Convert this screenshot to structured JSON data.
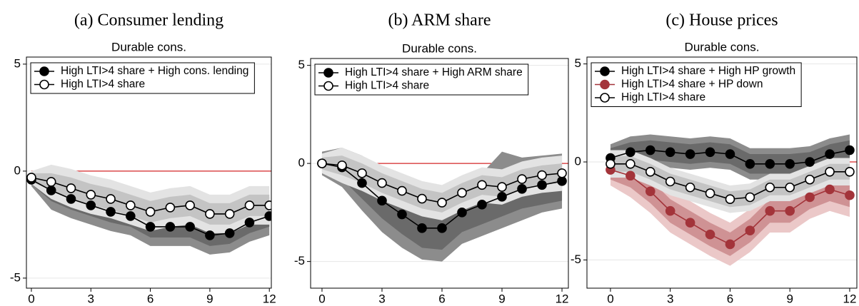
{
  "chart_data": [
    {
      "type": "line",
      "caption": "(a) Consumer lending",
      "title": "Durable cons.",
      "x": [
        0,
        1,
        2,
        3,
        4,
        5,
        6,
        7,
        8,
        9,
        10,
        11,
        12
      ],
      "xlim": [
        -0.25,
        12.1
      ],
      "xticks": [
        0,
        3,
        6,
        9,
        12
      ],
      "ylim": [
        -5.47,
        5.33
      ],
      "yticks": [
        -5,
        0,
        5
      ],
      "grid": true,
      "reference_line": {
        "value": 0,
        "color": "#d62728"
      },
      "legend": "top-left",
      "series": [
        {
          "name": "High LTI>4 share + High cons. lending",
          "color": "#000000",
          "marker": "filled",
          "band_colors": [
            "#8c8c8c",
            "#6a6a6a"
          ],
          "values": [
            -0.4,
            -0.9,
            -1.3,
            -1.6,
            -1.9,
            -2.1,
            -2.6,
            -2.6,
            -2.6,
            -3.0,
            -2.9,
            -2.4,
            -2.1
          ],
          "inner_lower": [
            -0.6,
            -1.4,
            -1.8,
            -2.1,
            -2.4,
            -2.6,
            -3.1,
            -3.1,
            -3.1,
            -3.5,
            -3.4,
            -2.9,
            -2.6
          ],
          "inner_upper": [
            -0.2,
            -0.4,
            -0.8,
            -1.1,
            -1.4,
            -1.6,
            -2.1,
            -2.1,
            -2.1,
            -2.5,
            -2.4,
            -1.9,
            -1.6
          ],
          "outer_lower": [
            -0.7,
            -1.8,
            -2.2,
            -2.5,
            -2.8,
            -3.0,
            -3.5,
            -3.5,
            -3.5,
            -3.9,
            -3.8,
            -3.3,
            -3.0
          ],
          "outer_upper": [
            -0.1,
            0,
            -0.4,
            -0.7,
            -1.0,
            -1.2,
            -1.7,
            -1.7,
            -1.7,
            -2.1,
            -2.0,
            -1.5,
            -1.2
          ]
        },
        {
          "name": "High LTI>4 share",
          "color": "#000000",
          "marker": "open",
          "band_colors": [
            "#e3e3e3",
            "#c4c4c4"
          ],
          "values": [
            -0.3,
            -0.5,
            -0.8,
            -1.1,
            -1.3,
            -1.6,
            -1.9,
            -1.7,
            -1.6,
            -2.0,
            -2.0,
            -1.6,
            -1.6
          ],
          "inner_lower": [
            -0.5,
            -0.9,
            -1.3,
            -1.6,
            -1.8,
            -2.1,
            -2.4,
            -2.2,
            -2.1,
            -2.5,
            -2.5,
            -2.1,
            -2.1
          ],
          "inner_upper": [
            -0.1,
            -0.1,
            -0.3,
            -0.6,
            -0.8,
            -1.1,
            -1.4,
            -1.2,
            -1.1,
            -1.5,
            -1.5,
            -1.1,
            -1.1
          ],
          "outer_lower": [
            -0.6,
            -1.3,
            -1.7,
            -2.0,
            -2.2,
            -2.5,
            -2.8,
            -2.6,
            -2.5,
            -2.9,
            -2.9,
            -2.5,
            -2.5
          ],
          "outer_upper": [
            0,
            0.3,
            0.1,
            -0.2,
            -0.4,
            -0.7,
            -1.0,
            -0.8,
            -0.7,
            -1.1,
            -1.1,
            -0.7,
            -0.7
          ]
        }
      ]
    },
    {
      "type": "line",
      "caption": "(b) ARM share",
      "title": "Durable cons.",
      "x": [
        0,
        1,
        2,
        3,
        4,
        5,
        6,
        7,
        8,
        9,
        10,
        11,
        12
      ],
      "xlim": [
        -0.57,
        12.32
      ],
      "xticks": [
        0,
        3,
        6,
        9,
        12
      ],
      "ylim": [
        -6.36,
        5.35
      ],
      "yticks": [
        -5,
        0,
        5
      ],
      "grid": true,
      "reference_line": {
        "value": 0,
        "color": "#d62728"
      },
      "legend": "top-left",
      "series": [
        {
          "name": "High LTI>4 share + High ARM share",
          "color": "#000000",
          "marker": "filled",
          "band_colors": [
            "#8c8c8c",
            "#6a6a6a"
          ],
          "values": [
            0,
            -0.2,
            -1.0,
            -1.9,
            -2.6,
            -3.3,
            -3.3,
            -2.5,
            -2.1,
            -1.7,
            -1.3,
            -1.1,
            -0.9
          ],
          "inner_lower": [
            -0.4,
            -0.8,
            -1.8,
            -2.8,
            -3.6,
            -4.3,
            -4.4,
            -3.5,
            -3.1,
            -2.7,
            -2.3,
            -2.1,
            -1.9
          ],
          "inner_upper": [
            0.4,
            0.4,
            -0.2,
            -1.0,
            -1.6,
            -2.3,
            -2.2,
            -1.5,
            -1.1,
            -0.7,
            -0.3,
            -0.1,
            0.1
          ],
          "outer_lower": [
            -0.6,
            -1.2,
            -2.4,
            -3.5,
            -4.3,
            -4.9,
            -5.0,
            -4.1,
            -3.7,
            -3.3,
            -2.9,
            -2.5,
            -2.3
          ],
          "outer_upper": [
            0.6,
            0.8,
            0.4,
            -0.3,
            -0.9,
            -1.7,
            -1.6,
            -0.9,
            -0.5,
            0.6,
            0.3,
            0.4,
            0.5
          ]
        },
        {
          "name": "High LTI>4 share",
          "color": "#000000",
          "marker": "open",
          "band_colors": [
            "#e3e3e3",
            "#c4c4c4"
          ],
          "values": [
            0,
            -0.1,
            -0.5,
            -1.0,
            -1.4,
            -1.8,
            -2.0,
            -1.5,
            -1.1,
            -1.2,
            -0.8,
            -0.6,
            -0.5
          ],
          "inner_lower": [
            -0.3,
            -0.6,
            -1.0,
            -1.5,
            -1.9,
            -2.3,
            -2.5,
            -2.0,
            -1.6,
            -1.7,
            -1.3,
            -1.1,
            -1.0
          ],
          "inner_upper": [
            0.3,
            0.4,
            0,
            -0.5,
            -0.9,
            -1.3,
            -1.5,
            -1.0,
            -0.6,
            -0.7,
            -0.3,
            -0.1,
            0
          ],
          "outer_lower": [
            -0.5,
            -1.0,
            -1.4,
            -1.9,
            -2.3,
            -2.7,
            -2.9,
            -2.4,
            -2.0,
            -2.1,
            -1.7,
            -1.5,
            -1.4
          ],
          "outer_upper": [
            0.5,
            0.8,
            0.4,
            -0.1,
            -0.5,
            -0.9,
            -1.1,
            -0.6,
            -0.2,
            -0.3,
            0.1,
            0.3,
            0.4
          ]
        }
      ]
    },
    {
      "type": "line",
      "caption": "(c) House prices",
      "title": "Durable cons.",
      "x": [
        0,
        1,
        2,
        3,
        4,
        5,
        6,
        7,
        8,
        9,
        10,
        11,
        12
      ],
      "xlim": [
        -1.18,
        12.36
      ],
      "xticks": [
        0,
        3,
        6,
        9,
        12
      ],
      "ylim": [
        -6.44,
        5.35
      ],
      "yticks": [
        -5,
        0,
        5
      ],
      "grid": true,
      "reference_line": {
        "value": 0,
        "color": "#d62728"
      },
      "legend": "top-left",
      "series": [
        {
          "name": "High LTI>4 share + High HP growth",
          "color": "#000000",
          "marker": "filled",
          "band_colors": [
            "#8c8c8c",
            "#6a6a6a"
          ],
          "values": [
            0.2,
            0.5,
            0.6,
            0.5,
            0.4,
            0.5,
            0.4,
            -0.1,
            -0.1,
            -0.1,
            0,
            0.4,
            0.6
          ],
          "inner_lower": [
            -0.3,
            0,
            0.1,
            0,
            -0.1,
            0,
            -0.1,
            -0.6,
            -0.6,
            -0.6,
            -0.5,
            -0.1,
            0.1
          ],
          "inner_upper": [
            0.7,
            1.0,
            1.1,
            1.0,
            0.9,
            1.0,
            0.9,
            0.4,
            0.4,
            0.4,
            0.5,
            0.9,
            1.1
          ],
          "outer_lower": [
            -0.5,
            -0.3,
            -0.2,
            -0.3,
            -0.4,
            -0.3,
            -0.4,
            -0.9,
            -0.9,
            -0.9,
            -0.8,
            -0.4,
            -0.2
          ],
          "outer_upper": [
            0.9,
            1.3,
            1.4,
            1.3,
            1.2,
            1.3,
            1.2,
            0.7,
            0.7,
            0.7,
            0.8,
            1.2,
            1.4
          ]
        },
        {
          "name": "High LTI>4 share + HP down",
          "color": "#a3343a",
          "marker": "filled",
          "band_colors": [
            "#ebc8c8",
            "#cf9294"
          ],
          "values": [
            -0.4,
            -0.7,
            -1.5,
            -2.5,
            -3.1,
            -3.7,
            -4.2,
            -3.5,
            -2.5,
            -2.5,
            -1.8,
            -1.4,
            -1.7
          ],
          "inner_lower": [
            -0.9,
            -1.3,
            -2.1,
            -3.1,
            -3.7,
            -4.3,
            -4.8,
            -4.1,
            -3.1,
            -3.1,
            -2.4,
            -2.0,
            -2.3
          ],
          "inner_upper": [
            0.1,
            -0.1,
            -0.9,
            -1.9,
            -2.5,
            -3.1,
            -3.6,
            -2.9,
            -1.9,
            -1.9,
            -1.2,
            -0.8,
            -1.1
          ],
          "outer_lower": [
            -1.2,
            -1.8,
            -2.6,
            -3.6,
            -4.2,
            -4.8,
            -5.3,
            -4.6,
            -3.6,
            -3.6,
            -2.9,
            -2.5,
            -2.8
          ],
          "outer_upper": [
            0.4,
            0.4,
            -0.4,
            -1.4,
            -2.0,
            -2.6,
            -3.1,
            -2.4,
            -1.4,
            -1.4,
            -0.7,
            -0.3,
            -0.6
          ]
        },
        {
          "name": "High LTI>4 share",
          "color": "#000000",
          "marker": "open",
          "band_colors": [
            "#e3e3e3",
            "#c4c4c4"
          ],
          "values": [
            -0.1,
            -0.1,
            -0.5,
            -1.0,
            -1.3,
            -1.6,
            -1.9,
            -1.8,
            -1.3,
            -1.3,
            -0.9,
            -0.5,
            -0.5
          ],
          "inner_lower": [
            -0.5,
            -0.5,
            -0.9,
            -1.4,
            -1.7,
            -2.0,
            -2.3,
            -2.2,
            -1.7,
            -1.7,
            -1.3,
            -0.9,
            -0.9
          ],
          "inner_upper": [
            0.3,
            0.3,
            -0.1,
            -0.6,
            -0.9,
            -1.2,
            -1.5,
            -1.4,
            -0.9,
            -0.9,
            -0.5,
            -0.1,
            -0.1
          ],
          "outer_lower": [
            -0.8,
            -0.8,
            -1.2,
            -1.7,
            -2.0,
            -2.3,
            -2.6,
            -2.5,
            -2.0,
            -2.0,
            -1.6,
            -1.2,
            -1.2
          ],
          "outer_upper": [
            0.6,
            0.6,
            0.2,
            -0.3,
            -0.6,
            -0.9,
            -1.2,
            -1.1,
            -0.6,
            -0.6,
            -0.2,
            0.2,
            0.2
          ]
        }
      ]
    }
  ]
}
